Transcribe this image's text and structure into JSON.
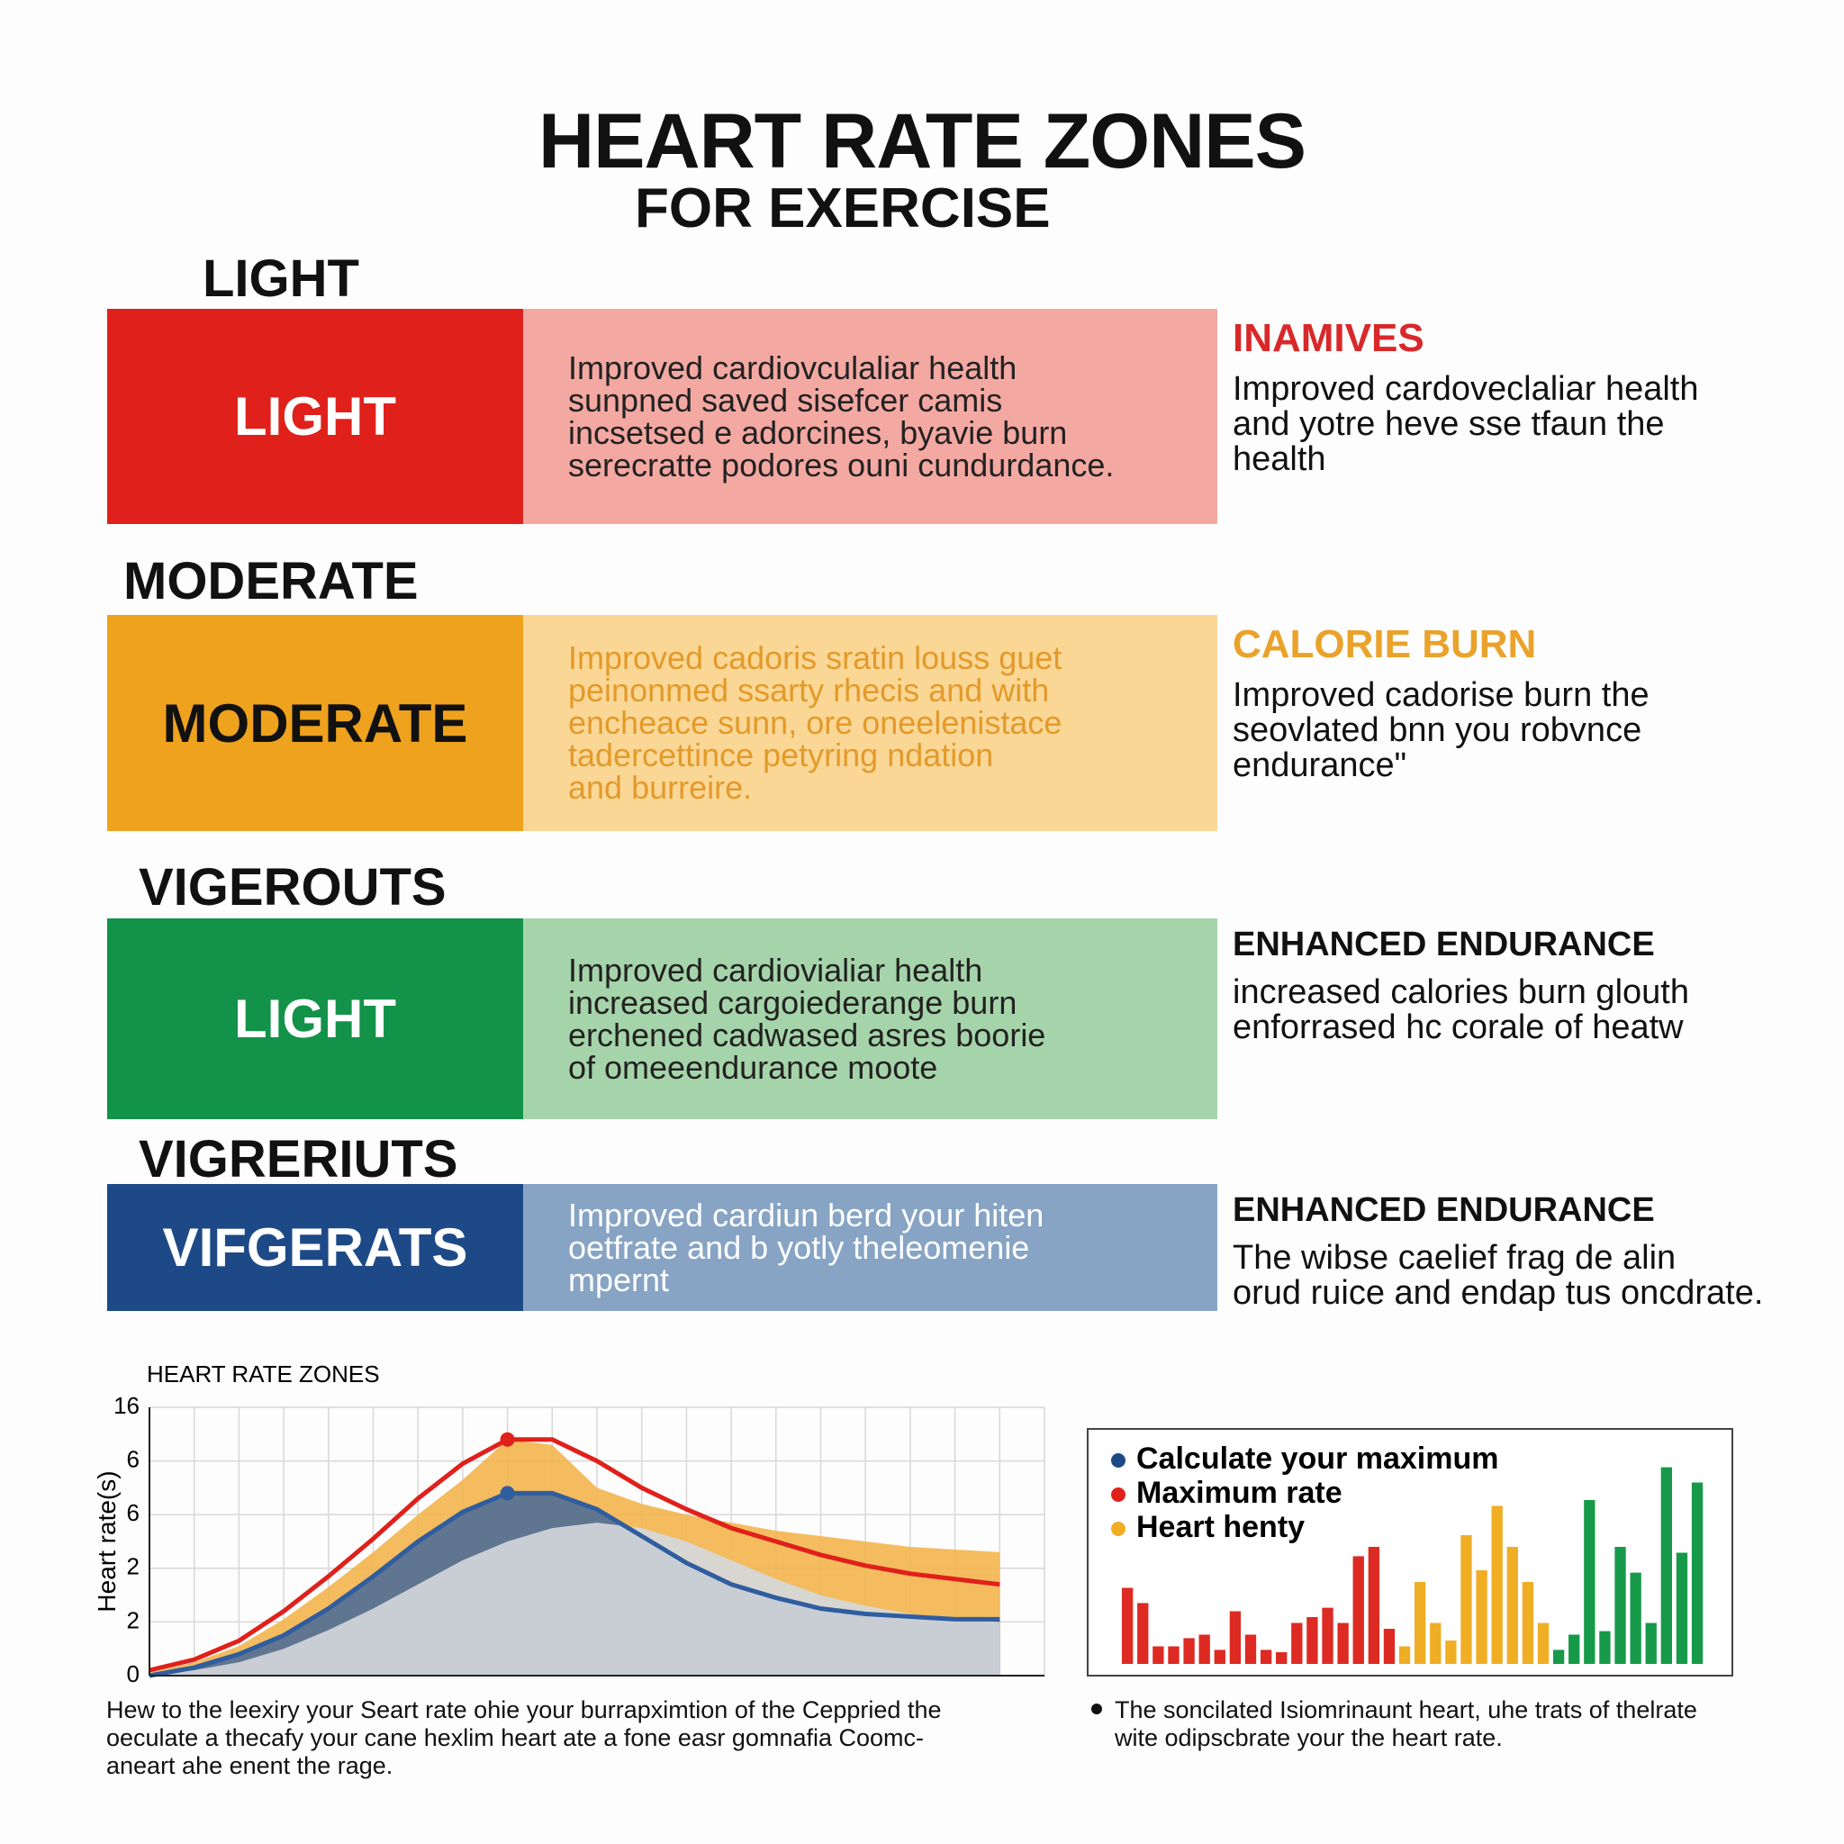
{
  "header": {
    "title": "HEART RATE ZONES",
    "subtitle": "FOR EXERCISE"
  },
  "zones": [
    {
      "heading": "LIGHT",
      "label": "LIGHT",
      "description": [
        "Improved cardiovculaliar health",
        "sunpned saved sisefcer camis",
        "incsetsed e adorcines, byavie burn",
        "serecratte podores ouni cundurdance."
      ],
      "side_title": "INAMIVES",
      "side_text": [
        "Improved cardoveclaliar health",
        "and yotre heve sse tfaun the",
        "health"
      ]
    },
    {
      "heading": "MODERATE",
      "label": "MODERATE",
      "description": [
        "Improved cadoris sratin louss guet",
        "peinonmed ssarty rhecis and with",
        "encheace sunn, ore oneelenistace",
        "tadercettince petyring ndation",
        "and burreire."
      ],
      "side_title": "CALORIE BURN",
      "side_text": [
        "Improved cadorise  burn the",
        "seovlated bnn you robvnce",
        "endurance\""
      ]
    },
    {
      "heading": "VIGEROUTS",
      "label": "LIGHT",
      "description": [
        "Improved cardiovialiar health",
        "increased cargoiederange burn",
        "erchened cadwased asres boorie",
        "of omeeendurance moote"
      ],
      "side_title": "ENHANCED ENDURANCE",
      "side_text": [
        "increased calories burn glouth",
        "enforrased hc corale of heatw"
      ]
    },
    {
      "heading": "VIGRERIUTS",
      "label": "VIFGERATS",
      "description": [
        "Improved cardiun berd your hiten",
        "oetfrate and b yotly theleomenie",
        "mpernt"
      ],
      "side_title": "ENHANCED ENDURANCE",
      "side_text": [
        "The wibse caelief frag de alin",
        "orud ruice and endap tus oncdrate."
      ]
    }
  ],
  "chart_data": [
    {
      "type": "line",
      "title": "HEART RATE ZONES",
      "y_label": "Heart rate(s)",
      "x": [
        0,
        1,
        2,
        3,
        4,
        5,
        6,
        7,
        8,
        9,
        10,
        11,
        12,
        13,
        14,
        15,
        16,
        17,
        18,
        19
      ],
      "xlim": [
        0,
        20
      ],
      "ylim": [
        0,
        10
      ],
      "yticks": [
        0,
        2,
        {
          "value": 4,
          "label": "2"
        },
        6,
        {
          "value": 8,
          "label": "6"
        },
        {
          "value": 10,
          "label": "16"
        }
      ],
      "grid": true,
      "series": [
        {
          "style": "area",
          "color": "#f3b54e",
          "values": [
            0.1,
            0.5,
            1.1,
            2.1,
            3.3,
            4.6,
            6.0,
            7.3,
            8.8,
            8.6,
            7.0,
            6.4,
            6.0,
            5.7,
            5.4,
            5.2,
            5.0,
            4.8,
            4.7,
            4.6
          ]
        },
        {
          "style": "area-line",
          "color": "#2f5da0",
          "values": [
            0,
            0.3,
            0.8,
            1.5,
            2.5,
            3.7,
            5.0,
            6.1,
            6.8,
            6.8,
            6.2,
            5.2,
            4.2,
            3.4,
            2.9,
            2.5,
            2.3,
            2.2,
            2.1,
            2.1
          ]
        },
        {
          "style": "area",
          "color": "#d5d8dd",
          "values": [
            0,
            0.2,
            0.5,
            1.0,
            1.7,
            2.5,
            3.4,
            4.3,
            5.0,
            5.5,
            5.7,
            5.5,
            5.0,
            4.3,
            3.6,
            3.0,
            2.6,
            2.3,
            2.1,
            2.0
          ]
        },
        {
          "style": "line",
          "color": "#e0201b",
          "values": [
            0.2,
            0.6,
            1.3,
            2.4,
            3.7,
            5.1,
            6.6,
            7.9,
            8.8,
            8.8,
            8.0,
            7.0,
            6.2,
            5.5,
            5.0,
            4.5,
            4.1,
            3.8,
            3.6,
            3.4
          ]
        }
      ]
    },
    {
      "type": "bar",
      "legend": [
        {
          "label": "Calculate your maximum",
          "color": "#1d4a87"
        },
        {
          "label": "Maximum rate",
          "color": "#e0201b"
        },
        {
          "label": "Heart henty",
          "color": "#f0ae24"
        }
      ],
      "values": [
        6.5,
        5.2,
        1.5,
        1.5,
        2.2,
        2.5,
        1.2,
        4.5,
        2.5,
        1.2,
        1.0,
        3.5,
        4.0,
        4.8,
        3.5,
        9.2,
        10.0,
        3.0,
        1.5,
        7.0,
        3.5,
        2.0,
        11.0,
        8.0,
        13.5,
        10.0,
        7.0,
        3.5,
        1.2,
        2.5,
        14.0,
        2.8,
        10.0,
        7.8,
        3.5,
        16.8,
        9.5,
        15.5
      ],
      "colors": [
        "#dd2a22",
        "#dd2a22",
        "#dd2a22",
        "#dd2a22",
        "#dd2a22",
        "#dd2a22",
        "#dd2a22",
        "#dd2a22",
        "#dd2a22",
        "#dd2a22",
        "#dd2a22",
        "#dd2a22",
        "#dd2a22",
        "#dd2a22",
        "#dd2a22",
        "#dd2a22",
        "#dd2a22",
        "#dd2a22",
        "#f0ae24",
        "#f0ae24",
        "#f0ae24",
        "#f0ae24",
        "#f0ae24",
        "#f0ae24",
        "#f0ae24",
        "#f0ae24",
        "#f0ae24",
        "#f0ae24",
        "#169a4a",
        "#169a4a",
        "#169a4a",
        "#169a4a",
        "#169a4a",
        "#169a4a",
        "#169a4a",
        "#169a4a",
        "#169a4a",
        "#169a4a"
      ]
    }
  ],
  "captions": {
    "left": [
      "Hew to the leexiry your Seart rate ohie your burrapximtion of the Ceppried the",
      "oeculate a thecafy your cane hexlim heart  ate a fone easr gomnafia Coomc-",
      "aneart ahe enent the rage."
    ],
    "right": [
      "The soncilated Isiomrinaunt heart, uhe trats of thelrate",
      "wite odipscbrate your the heart rate."
    ]
  }
}
